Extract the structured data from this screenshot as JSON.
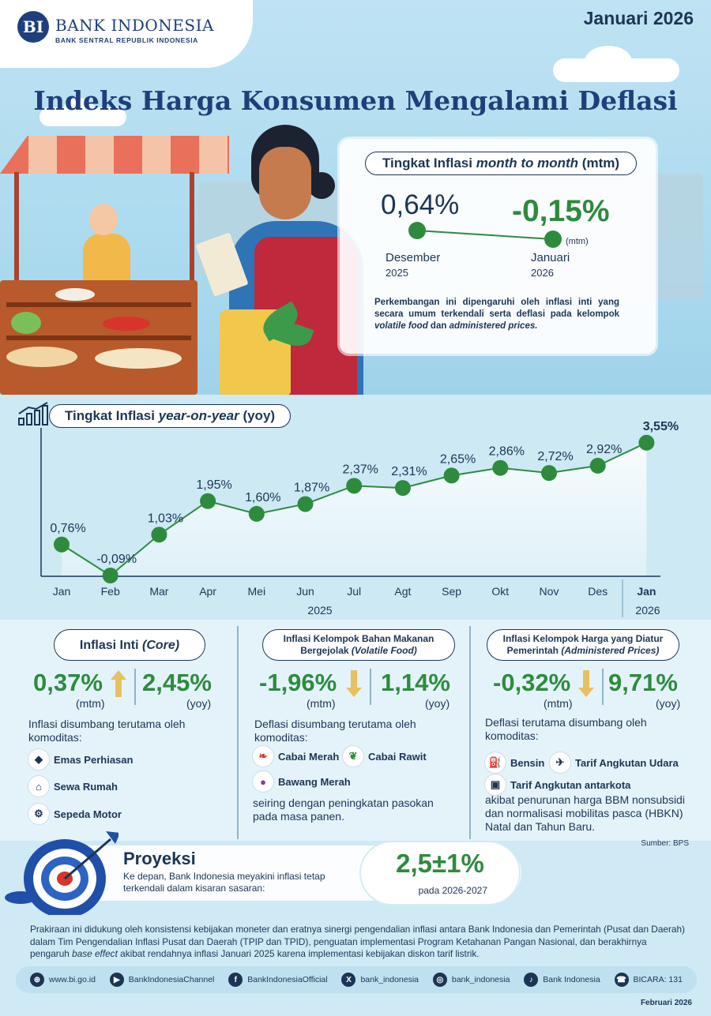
{
  "header": {
    "logo_mark": "BI",
    "logo_name": "BANK INDONESIA",
    "logo_sub": "BANK SENTRAL REPUBLIK INDONESIA",
    "period": "Januari 2026",
    "title": "Indeks Harga Konsumen Mengalami Deflasi"
  },
  "mtm": {
    "heading_pre": "Tingkat Inflasi ",
    "heading_em": "month to month",
    "heading_post": " (mtm)",
    "prev_value": "0,64%",
    "prev_month": "Desember",
    "prev_year": "2025",
    "curr_value": "-0,15%",
    "curr_unit": "(mtm)",
    "curr_month": "Januari",
    "curr_year": "2026",
    "desc_1": "Perkembangan ini dipengaruhi oleh inflasi inti yang secara umum terkendali serta deflasi pada kelompok ",
    "desc_em1": "volatile food",
    "desc_2": " dan ",
    "desc_em2": "administered prices.",
    "desc_3": ""
  },
  "yoy": {
    "heading_pre": "Tingkat Inflasi ",
    "heading_em": "year-on-year",
    "heading_post": " (yoy)",
    "year_2025": "2025",
    "year_2026": "2026"
  },
  "chart_data": {
    "type": "line",
    "title": "Tingkat Inflasi year-on-year (yoy)",
    "categories": [
      "Jan",
      "Feb",
      "Mar",
      "Apr",
      "Mei",
      "Jun",
      "Jul",
      "Agt",
      "Sep",
      "Okt",
      "Nov",
      "Des",
      "Jan"
    ],
    "values": [
      0.76,
      -0.09,
      1.03,
      1.95,
      1.6,
      1.87,
      2.37,
      2.31,
      2.65,
      2.86,
      2.72,
      2.92,
      3.55
    ],
    "labels": [
      "0,76%",
      "-0,09%",
      "1,03%",
      "1,95%",
      "1,60%",
      "1,87%",
      "2,37%",
      "2,31%",
      "2,65%",
      "2,86%",
      "2,72%",
      "2,92%",
      "3,55%"
    ],
    "ylim": [
      -0.5,
      4.0
    ],
    "grid": false,
    "color": "#2e8b3e"
  },
  "panels": {
    "core": {
      "title_pre": "Inflasi Inti ",
      "title_em": "(Core)",
      "mtm": "0,37%",
      "mtm_unit": "(mtm)",
      "yoy": "2,45%",
      "yoy_unit": "(yoy)",
      "text": "Inflasi disumbang terutama oleh komoditas:",
      "items": [
        "Emas Perhiasan",
        "Sewa Rumah",
        "Sepeda Motor"
      ]
    },
    "volatile": {
      "title_1": "Inflasi Kelompok Bahan Makanan",
      "title_2": "Bergejolak ",
      "title_em": "(Volatile Food)",
      "mtm": "-1,96%",
      "mtm_unit": "(mtm)",
      "yoy": "1,14%",
      "yoy_unit": "(yoy)",
      "text": "Deflasi disumbang terutama oleh komoditas:",
      "items": [
        "Cabai Merah",
        "Cabai Rawit",
        "Bawang Merah"
      ],
      "note": "seiring dengan peningkatan pasokan pada masa panen."
    },
    "administered": {
      "title_1": "Inflasi Kelompok Harga yang Diatur",
      "title_2": "Pemerintah ",
      "title_em": "(Administered Prices)",
      "mtm": "-0,32%",
      "mtm_unit": "(mtm)",
      "yoy": "9,71%",
      "yoy_unit": "(yoy)",
      "text": "Deflasi terutama disumbang oleh komoditas:",
      "items": [
        "Bensin",
        "Tarif Angkutan Udara",
        "Tarif Angkutan antarkota"
      ],
      "note": "akibat penurunan harga BBM nonsubsidi dan normalisasi mobilitas pasca (HBKN) Natal dan Tahun Baru."
    },
    "source": "Sumber: BPS"
  },
  "projection": {
    "title": "Proyeksi",
    "text": "Ke depan, Bank Indonesia meyakini inflasi tetap terkendali dalam kisaran sasaran:",
    "value": "2,5±1%",
    "range": "pada 2026-2027"
  },
  "footnote": {
    "part1": "Prakiraan ini didukung oleh konsistensi kebijakan moneter dan eratnya sinergi pengendalian inflasi antara Bank Indonesia dan Pemerintah (Pusat dan Daerah) dalam Tim Pengendalian Inflasi Pusat dan Daerah (TPIP dan TPID), penguatan implementasi Program Ketahanan Pangan Nasional, dan berakhirnya pengaruh ",
    "em": "base effect",
    "part2": " akibat rendahnya inflasi Januari 2025 karena implementasi kebijakan diskon tarif listrik."
  },
  "socials": [
    {
      "icon": "globe-icon",
      "glyph": "⊕",
      "label": "www.bi.go.id"
    },
    {
      "icon": "youtube-icon",
      "glyph": "▶",
      "label": "BankIndonesiaChannel"
    },
    {
      "icon": "facebook-icon",
      "glyph": "f",
      "label": "BankIndonesiaOfficial"
    },
    {
      "icon": "x-icon",
      "glyph": "X",
      "label": "bank_indonesia"
    },
    {
      "icon": "instagram-icon",
      "glyph": "◎",
      "label": "bank_indonesia"
    },
    {
      "icon": "tiktok-icon",
      "glyph": "♪",
      "label": "Bank Indonesia"
    },
    {
      "icon": "bicara-icon",
      "glyph": "☎",
      "label": "BICARA: 131"
    }
  ],
  "pubdate": "Februari 2026",
  "colors": {
    "green": "#2e8b3e",
    "navy": "#1c3554",
    "accent": "#e8b84a"
  }
}
